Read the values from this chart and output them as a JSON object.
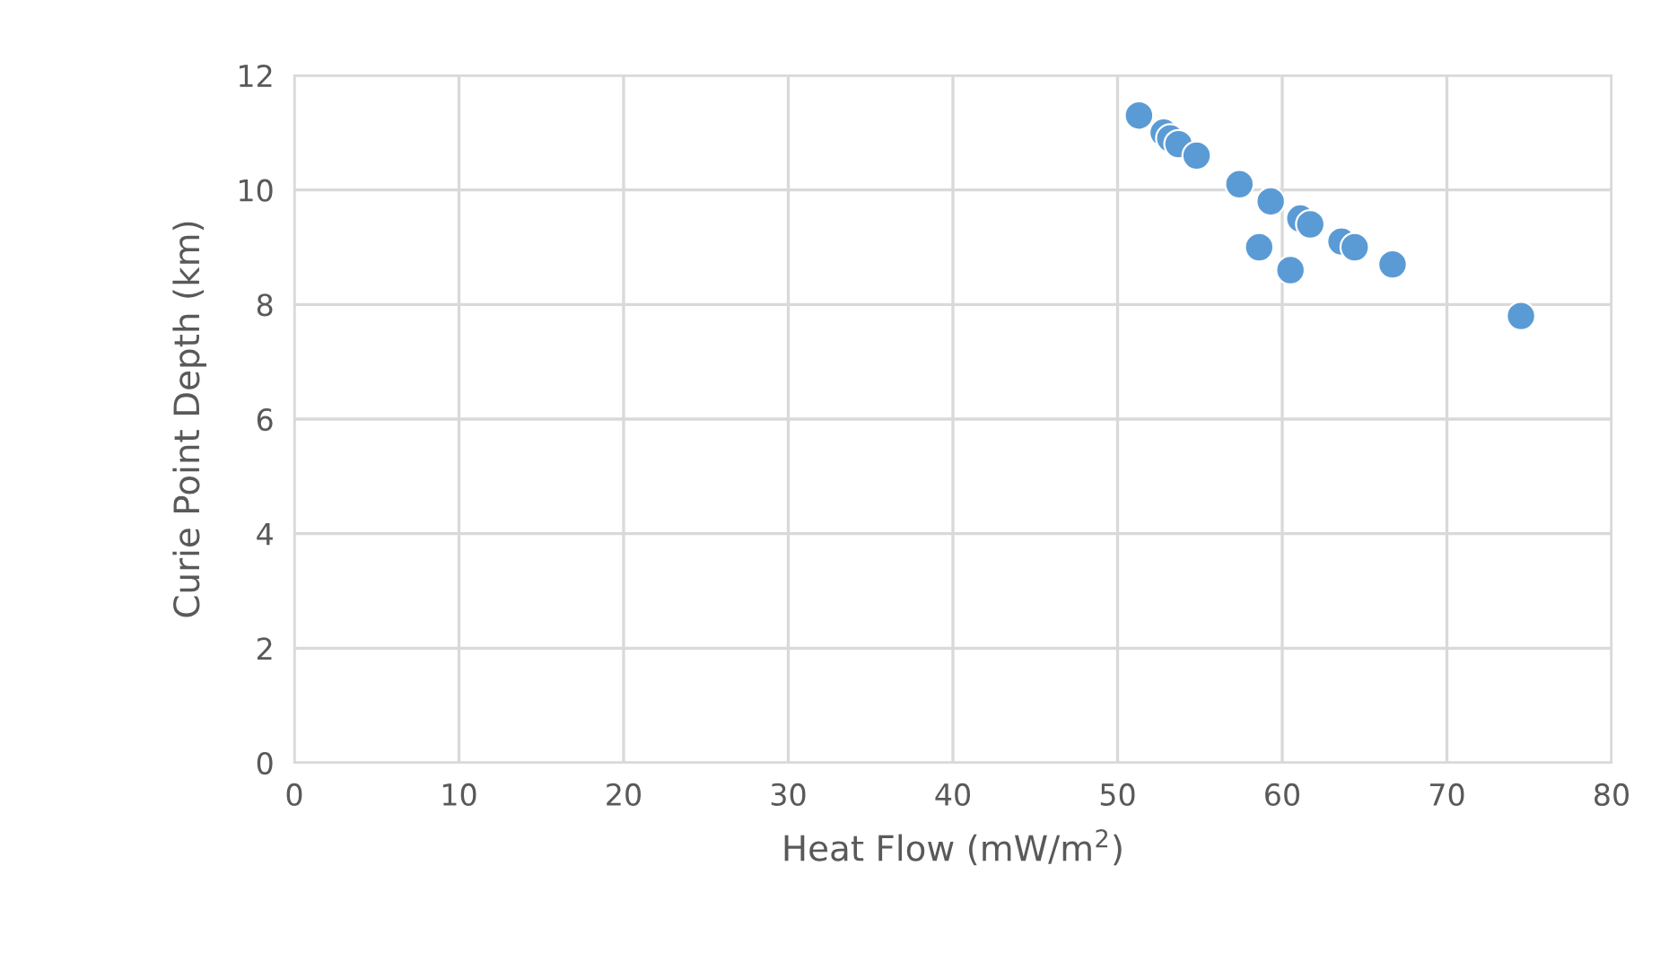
{
  "chart_data": {
    "type": "scatter",
    "xlabel": "Heat Flow (mW/m$^{2}$)",
    "ylabel": "Curie Point Depth (km)",
    "x": [
      51.3,
      52.8,
      53.2,
      53.7,
      54.8,
      57.4,
      59.3,
      61.1,
      61.7,
      63.6,
      64.4,
      58.6,
      60.5,
      66.7,
      74.5
    ],
    "values": [
      11.3,
      11.0,
      10.9,
      10.8,
      10.6,
      10.1,
      9.8,
      9.5,
      9.4,
      9.1,
      9.0,
      9.0,
      8.6,
      8.7,
      7.8
    ],
    "color": "#5b9bd5",
    "marker": "circle",
    "xlim": [
      0,
      80
    ],
    "xticks": [
      0,
      10,
      20,
      30,
      40,
      50,
      60,
      70,
      80
    ],
    "ylim": [
      0,
      12
    ],
    "yticks": [
      0,
      2,
      4,
      6,
      8,
      10,
      12
    ],
    "grid": true,
    "legend": false
  }
}
